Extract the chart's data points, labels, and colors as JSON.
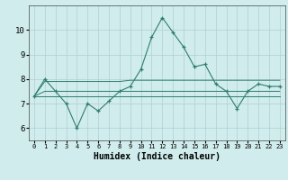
{
  "xlabel": "Humidex (Indice chaleur)",
  "x": [
    0,
    1,
    2,
    3,
    4,
    5,
    6,
    7,
    8,
    9,
    10,
    11,
    12,
    13,
    14,
    15,
    16,
    17,
    18,
    19,
    20,
    21,
    22,
    23
  ],
  "line1": [
    7.3,
    8.0,
    7.5,
    7.0,
    6.0,
    7.0,
    6.7,
    7.1,
    7.5,
    7.7,
    8.4,
    9.7,
    10.5,
    9.9,
    9.3,
    8.5,
    8.6,
    7.8,
    7.5,
    6.8,
    7.5,
    7.8,
    7.7,
    7.7
  ],
  "line2": [
    7.3,
    7.9,
    7.9,
    7.9,
    7.9,
    7.9,
    7.9,
    7.9,
    7.9,
    7.95,
    7.95,
    7.95,
    7.95,
    7.95,
    7.95,
    7.95,
    7.95,
    7.95,
    7.95,
    7.95,
    7.95,
    7.95,
    7.95,
    7.95
  ],
  "line3": [
    7.3,
    7.5,
    7.5,
    7.5,
    7.5,
    7.5,
    7.5,
    7.5,
    7.5,
    7.5,
    7.5,
    7.5,
    7.5,
    7.5,
    7.5,
    7.5,
    7.5,
    7.5,
    7.5,
    7.5,
    7.5,
    7.5,
    7.5,
    7.5
  ],
  "line4": [
    7.3,
    7.3,
    7.3,
    7.3,
    7.3,
    7.3,
    7.3,
    7.3,
    7.3,
    7.3,
    7.3,
    7.3,
    7.3,
    7.3,
    7.3,
    7.3,
    7.3,
    7.3,
    7.3,
    7.3,
    7.3,
    7.3,
    7.3,
    7.3
  ],
  "line_color": "#2e7d6e",
  "bg_color": "#d0ecec",
  "grid_color": "#b0d0d0",
  "ylim": [
    5.5,
    11.0
  ],
  "yticks": [
    6,
    7,
    8,
    9,
    10
  ],
  "xticks": [
    0,
    1,
    2,
    3,
    4,
    5,
    6,
    7,
    8,
    9,
    10,
    11,
    12,
    13,
    14,
    15,
    16,
    17,
    18,
    19,
    20,
    21,
    22,
    23
  ],
  "xlabel_fontsize": 7,
  "tick_fontsize": 6.5
}
